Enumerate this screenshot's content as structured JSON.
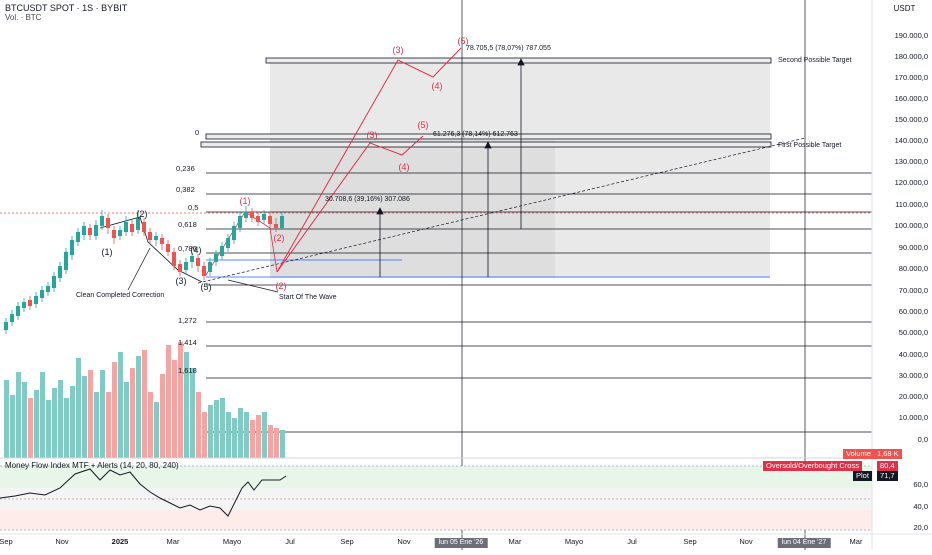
{
  "header": {
    "symbol": "BTCUSDT SPOT · 1S · BYBIT",
    "volume_title": "Vol. · BTC",
    "currency": "USDT"
  },
  "price_axis": {
    "labels": [
      "190.000,0",
      "180.000,0",
      "170.000,0",
      "160.000,0",
      "150.000,0",
      "140.000,0",
      "130.000,0",
      "120.000,0",
      "110.000,0",
      "100.000,0",
      "90.000,0",
      "80.000,0",
      "70.000,0",
      "60.000,0",
      "50.000,0",
      "40.000,0",
      "30.000,0",
      "20.000,0",
      "10.000,0",
      "0,0"
    ]
  },
  "mfi_axis": {
    "labels": [
      "60,0",
      "40,0",
      "20,0"
    ]
  },
  "time_axis": {
    "labels": [
      "Sep",
      "Nov",
      "2025",
      "Mar",
      "Mayo",
      "Jul",
      "Sep",
      "Nov",
      "Mar",
      "Mayo",
      "Jul",
      "Sep",
      "Nov",
      "Mar"
    ],
    "highlight_1": "lun 05 Ene '26",
    "highlight_2": "lun 04 Ene '27"
  },
  "fib_levels": [
    "0",
    "0,236",
    "0,382",
    "0,5",
    "0,618",
    "0,786",
    "1,272",
    "1,414",
    "1,618"
  ],
  "wave_labels": {
    "black": [
      "(1)",
      "(2)",
      "(3)",
      "(4)",
      "(5)"
    ],
    "red_small": [
      "(1)",
      "(2)",
      "(2)"
    ],
    "red_mid": [
      "(3)",
      "(4)",
      "(5)"
    ],
    "red_top": [
      "(3)",
      "(4)",
      "(5)"
    ]
  },
  "annotations": {
    "clean_correction": "Clean Completed Correction",
    "start_wave": "Start Of The Wave",
    "first_target": "First Possible Target",
    "second_target": "Second Possible Target",
    "measure_1": "30.708,6 (39,16%) 307.086",
    "measure_2": "61.276,3 (78,14%) 612.763",
    "measure_3": "78.705,5 (78,07%) 787.055"
  },
  "tags": {
    "volume_tag": "Volume",
    "volume_value": "1,68 K",
    "mfi_cross_tag": "Oversold/Overbought Cross",
    "mfi_cross_value": "80,4",
    "plot_tag": "Plot",
    "plot_value": "71,7"
  },
  "mfi_title": "Money Flow Index MTF + Alerts (14, 20, 80, 240)",
  "colors": {
    "up": "#26a69a",
    "down": "#ef5350",
    "wave_red": "#e0314a",
    "target_box": "#d1d4dc",
    "zone_gray": "#e6e6e6"
  }
}
